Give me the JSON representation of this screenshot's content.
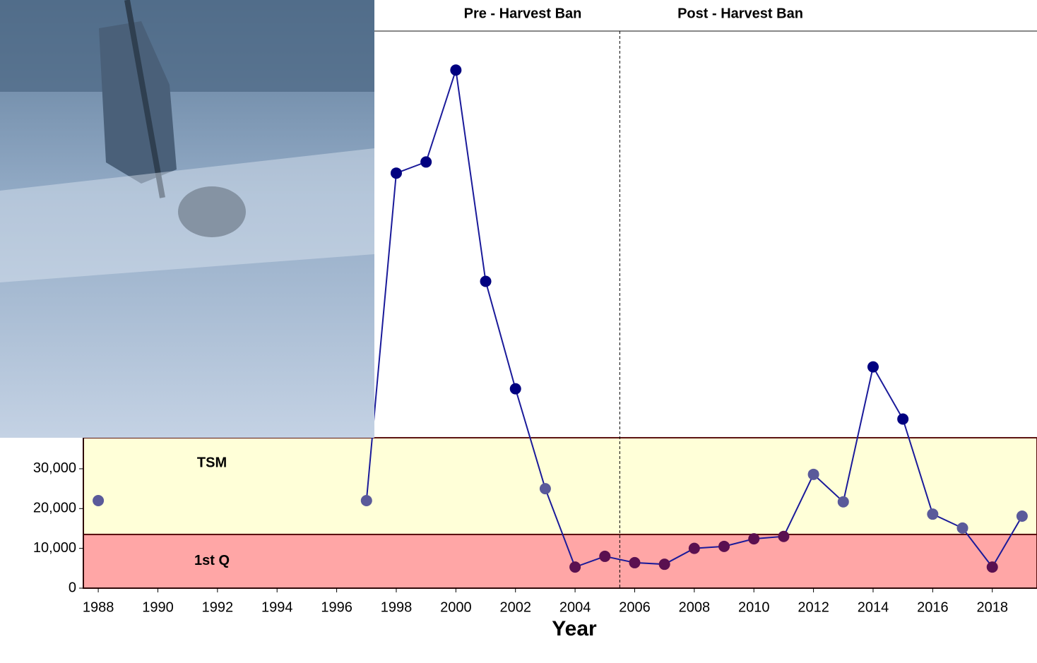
{
  "chart_data": {
    "type": "line",
    "x_label": "Year",
    "x": [
      1988,
      1989,
      1990,
      1991,
      1992,
      1993,
      1994,
      1995,
      1996,
      1997,
      1998,
      1999,
      2000,
      2001,
      2002,
      2003,
      2004,
      2005,
      2006,
      2007,
      2008,
      2009,
      2010,
      2011,
      2012,
      2013,
      2014,
      2015,
      2016,
      2017,
      2018,
      2019
    ],
    "values": [
      22000,
      null,
      null,
      null,
      null,
      null,
      null,
      null,
      null,
      22000,
      104300,
      107100,
      130200,
      77100,
      50100,
      25000,
      5300,
      8000,
      6400,
      6000,
      10000,
      10500,
      12400,
      13000,
      28600,
      21700,
      55600,
      42500,
      18600,
      15100,
      5300,
      18100
    ],
    "color": "#000080",
    "line_color": "#1a1a9a",
    "xlim": [
      1987.5,
      2019.5
    ],
    "ylim": [
      0,
      140000
    ],
    "xticks": [
      1988,
      1990,
      1992,
      1994,
      1996,
      1998,
      2000,
      2002,
      2004,
      2006,
      2008,
      2010,
      2012,
      2014,
      2016,
      2018
    ],
    "yticks": [
      0,
      {
        "value": 10000,
        "label": "10,000"
      },
      {
        "value": 20000,
        "label": "20,000"
      },
      {
        "value": 30000,
        "label": "30,000"
      }
    ],
    "bands": [
      {
        "label": "1st Q",
        "from": 0,
        "to": 13500,
        "color": "#ffa6a6",
        "point_color": "#5a1050"
      },
      {
        "label": "TSM",
        "from": 13500,
        "to": 37800,
        "color": "#ffffd8",
        "point_color": "#5a5a9a"
      }
    ],
    "divider": {
      "x": 2005.5,
      "left_label": "Pre - Harvest Ban",
      "right_label": "Post - Harvest Ban"
    }
  }
}
